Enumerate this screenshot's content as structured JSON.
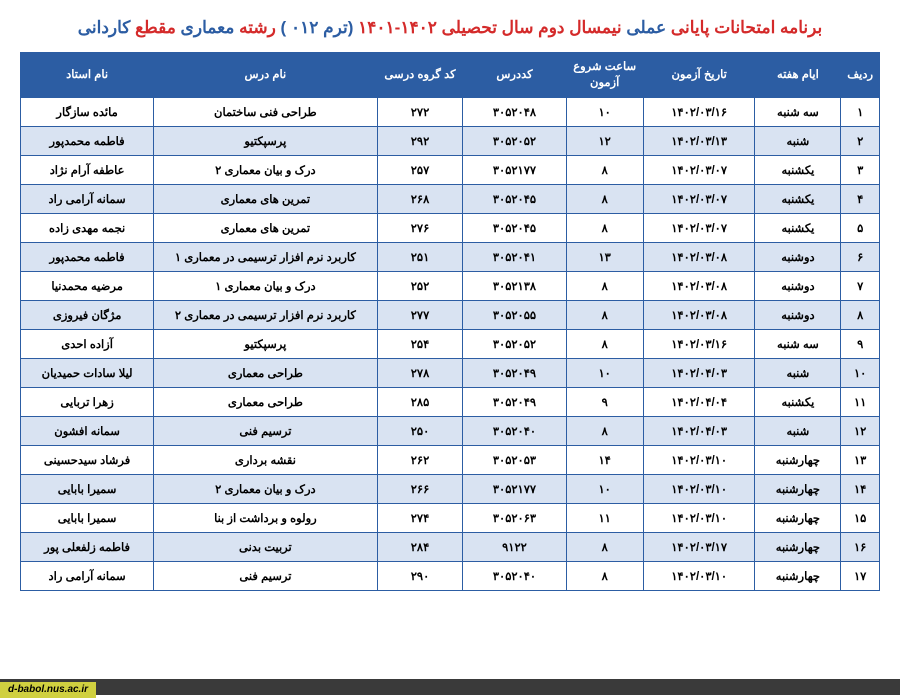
{
  "title_segments": [
    {
      "text": "برنامه امتحانات پایانی ",
      "color": "#d42a2a"
    },
    {
      "text": "عملی",
      "color": "#2c5da3"
    },
    {
      "text": "  نیمسال دوم سال تحصیلی ۱۴۰۲-۱۴۰۱  ",
      "color": "#d42a2a"
    },
    {
      "text": "(ترم ۰۱۲ )",
      "color": "#2c5da3"
    },
    {
      "text": " رشته ",
      "color": "#d42a2a"
    },
    {
      "text": " معماری ",
      "color": "#2c5da3"
    },
    {
      "text": " مقطع ",
      "color": "#d42a2a"
    },
    {
      "text": " کاردانی",
      "color": "#2c5da3"
    }
  ],
  "columns": [
    {
      "key": "row",
      "label": "ردیف",
      "class": "col-row"
    },
    {
      "key": "day",
      "label": "ایام هفته",
      "class": "col-day"
    },
    {
      "key": "date",
      "label": "تاریخ آزمون",
      "class": "col-date"
    },
    {
      "key": "time",
      "label": "ساعت شروع آزمون",
      "class": "col-time"
    },
    {
      "key": "code",
      "label": "کددرس",
      "class": "col-code"
    },
    {
      "key": "group",
      "label": "کد گروه درسی",
      "class": "col-group"
    },
    {
      "key": "lesson",
      "label": "نام درس",
      "class": "col-lesson"
    },
    {
      "key": "prof",
      "label": "نام استاد",
      "class": "col-prof"
    }
  ],
  "rows": [
    {
      "row": "۱",
      "day": "سه شنبه",
      "date": "۱۴۰۲/۰۳/۱۶",
      "time": "۱۰",
      "code": "۳۰۵۲۰۴۸",
      "group": "۲۷۲",
      "lesson": "طراحی فنی ساختمان",
      "prof": "مائده سازگار"
    },
    {
      "row": "۲",
      "day": "شنبه",
      "date": "۱۴۰۲/۰۳/۱۳",
      "time": "۱۲",
      "code": "۳۰۵۲۰۵۲",
      "group": "۲۹۲",
      "lesson": "پرسپکتیو",
      "prof": "فاطمه محمدپور"
    },
    {
      "row": "۳",
      "day": "یکشنبه",
      "date": "۱۴۰۲/۰۳/۰۷",
      "time": "۸",
      "code": "۳۰۵۲۱۷۷",
      "group": "۲۵۷",
      "lesson": "درک و بیان معماری ۲",
      "prof": "عاطفه آرام نژاد"
    },
    {
      "row": "۴",
      "day": "یکشنبه",
      "date": "۱۴۰۲/۰۳/۰۷",
      "time": "۸",
      "code": "۳۰۵۲۰۴۵",
      "group": "۲۶۸",
      "lesson": "تمرین های معماری",
      "prof": "سمانه آرامی راد"
    },
    {
      "row": "۵",
      "day": "یکشنبه",
      "date": "۱۴۰۲/۰۳/۰۷",
      "time": "۸",
      "code": "۳۰۵۲۰۴۵",
      "group": "۲۷۶",
      "lesson": "تمرین های معماری",
      "prof": "نجمه مهدی زاده"
    },
    {
      "row": "۶",
      "day": "دوشنبه",
      "date": "۱۴۰۲/۰۳/۰۸",
      "time": "۱۳",
      "code": "۳۰۵۲۰۴۱",
      "group": "۲۵۱",
      "lesson": "کاربرد نرم افزار ترسیمی در معماری ۱",
      "prof": "فاطمه محمدپور"
    },
    {
      "row": "۷",
      "day": "دوشنبه",
      "date": "۱۴۰۲/۰۳/۰۸",
      "time": "۸",
      "code": "۳۰۵۲۱۳۸",
      "group": "۲۵۲",
      "lesson": "درک و بیان معماری ۱",
      "prof": "مرضیه محمدنیا"
    },
    {
      "row": "۸",
      "day": "دوشنبه",
      "date": "۱۴۰۲/۰۳/۰۸",
      "time": "۸",
      "code": "۳۰۵۲۰۵۵",
      "group": "۲۷۷",
      "lesson": "کاربرد نرم افزار ترسیمی در معماری ۲",
      "prof": "مژگان فیروزی"
    },
    {
      "row": "۹",
      "day": "سه شنبه",
      "date": "۱۴۰۲/۰۳/۱۶",
      "time": "۸",
      "code": "۳۰۵۲۰۵۲",
      "group": "۲۵۴",
      "lesson": "پرسپکتیو",
      "prof": "آزاده احدی"
    },
    {
      "row": "۱۰",
      "day": "شنبه",
      "date": "۱۴۰۲/۰۴/۰۳",
      "time": "۱۰",
      "code": "۳۰۵۲۰۴۹",
      "group": "۲۷۸",
      "lesson": "طراحی معماری",
      "prof": "لیلا سادات حمیدیان"
    },
    {
      "row": "۱۱",
      "day": "یکشنبه",
      "date": "۱۴۰۲/۰۴/۰۴",
      "time": "۹",
      "code": "۳۰۵۲۰۴۹",
      "group": "۲۸۵",
      "lesson": "طراحی معماری",
      "prof": "زهرا تربایی"
    },
    {
      "row": "۱۲",
      "day": "شنبه",
      "date": "۱۴۰۲/۰۴/۰۳",
      "time": "۸",
      "code": "۳۰۵۲۰۴۰",
      "group": "۲۵۰",
      "lesson": "ترسیم فنی",
      "prof": "سمانه افشون"
    },
    {
      "row": "۱۳",
      "day": "چهارشنبه",
      "date": "۱۴۰۲/۰۳/۱۰",
      "time": "۱۴",
      "code": "۳۰۵۲۰۵۳",
      "group": "۲۶۲",
      "lesson": "نقشه برداری",
      "prof": "فرشاد سیدحسینی"
    },
    {
      "row": "۱۴",
      "day": "چهارشنبه",
      "date": "۱۴۰۲/۰۳/۱۰",
      "time": "۱۰",
      "code": "۳۰۵۲۱۷۷",
      "group": "۲۶۶",
      "lesson": "درک و بیان معماری ۲",
      "prof": "سمیرا بابایی"
    },
    {
      "row": "۱۵",
      "day": "چهارشنبه",
      "date": "۱۴۰۲/۰۳/۱۰",
      "time": "۱۱",
      "code": "۳۰۵۲۰۶۳",
      "group": "۲۷۴",
      "lesson": "رولوه و برداشت از بنا",
      "prof": "سمیرا بابایی"
    },
    {
      "row": "۱۶",
      "day": "چهارشنبه",
      "date": "۱۴۰۲/۰۳/۱۷",
      "time": "۸",
      "code": "۹۱۲۲",
      "group": "۲۸۴",
      "lesson": "تربیت بدنی",
      "prof": "فاطمه زلفعلی پور"
    },
    {
      "row": "۱۷",
      "day": "چهارشنبه",
      "date": "۱۴۰۲/۰۳/۱۰",
      "time": "۸",
      "code": "۳۰۵۲۰۴۰",
      "group": "۲۹۰",
      "lesson": "ترسیم فنی",
      "prof": "سمانه آرامی راد"
    }
  ],
  "footer_url": "d-babol.nus.ac.ir",
  "colors": {
    "header_bg": "#2c5da3",
    "header_fg": "#ffffff",
    "row_alt_bg": "#d9e3f2",
    "title_red": "#d42a2a",
    "title_blue": "#2c5da3"
  }
}
